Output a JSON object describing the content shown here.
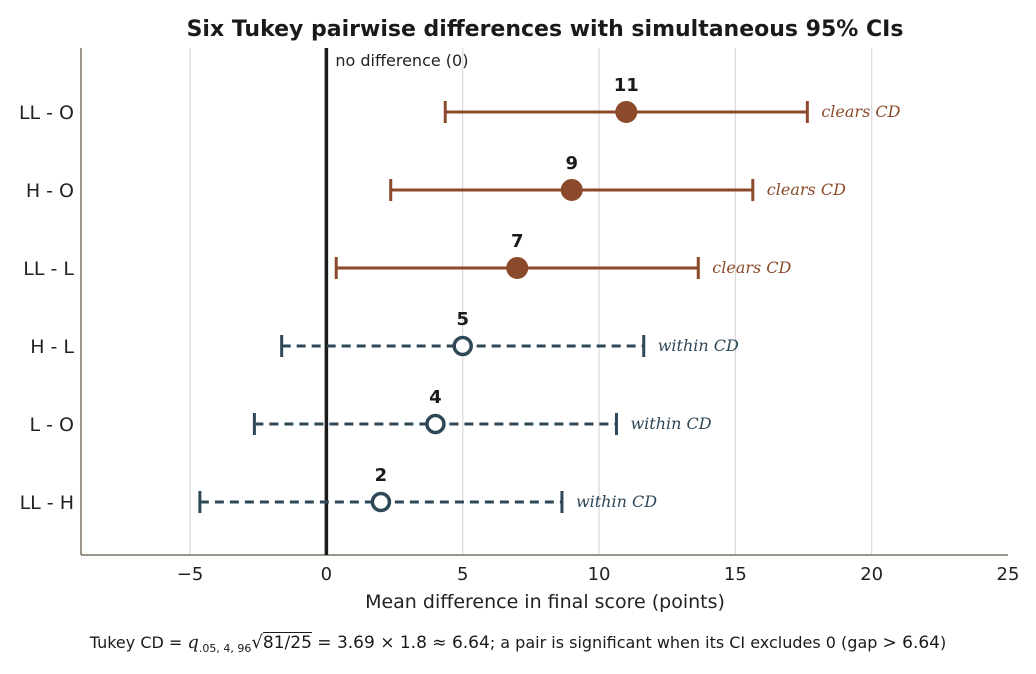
{
  "chart_data": {
    "type": "scatter",
    "title": "Six Tukey pairwise differences with simultaneous 95% CIs",
    "xlabel": "Mean difference in final score (points)",
    "ylabel": "",
    "xlim": [
      -9,
      25
    ],
    "xticks": [
      -5,
      0,
      5,
      10,
      15,
      20,
      25
    ],
    "xtick_labels": [
      "−5",
      "0",
      "5",
      "10",
      "15",
      "20",
      "25"
    ],
    "grid": "vertical",
    "reference_line": {
      "x": 0,
      "label": "no difference (0)"
    },
    "colors": {
      "significant": "#8b4a2b",
      "not_significant": "#2f4858",
      "zero_line": "#1a1a1a",
      "grid": "#d9d9d9",
      "axis": "#7a7266"
    },
    "pairs": [
      {
        "label": "LL - O",
        "diff": 11,
        "lo": 4.36,
        "hi": 17.64,
        "significant": true,
        "note": "clears CD",
        "value_label": "11"
      },
      {
        "label": "H - O",
        "diff": 9,
        "lo": 2.36,
        "hi": 15.64,
        "significant": true,
        "note": "clears CD",
        "value_label": "9"
      },
      {
        "label": "LL - L",
        "diff": 7,
        "lo": 0.36,
        "hi": 13.64,
        "significant": true,
        "note": "clears CD",
        "value_label": "7"
      },
      {
        "label": "H - L",
        "diff": 5,
        "lo": -1.64,
        "hi": 11.64,
        "significant": false,
        "note": "within CD",
        "value_label": "5"
      },
      {
        "label": "L - O",
        "diff": 4,
        "lo": -2.64,
        "hi": 10.64,
        "significant": false,
        "note": "within CD",
        "value_label": "4"
      },
      {
        "label": "LL - H",
        "diff": 2,
        "lo": -4.64,
        "hi": 8.64,
        "significant": false,
        "note": "within CD",
        "value_label": "2"
      }
    ]
  },
  "footnote": {
    "prefix": "Tukey CD ",
    "eq1": "= ",
    "q": "q",
    "q_sub": ".05, 4, 96",
    "sqrt_sign": "√",
    "sqrt_arg": "81/25",
    "formula_rest": " = 3.69 × 1.8 ≈ 6.64",
    "suffix": "; a pair is significant when its CI excludes 0 (gap ",
    "gap": "> 6.64",
    "close": ")"
  }
}
